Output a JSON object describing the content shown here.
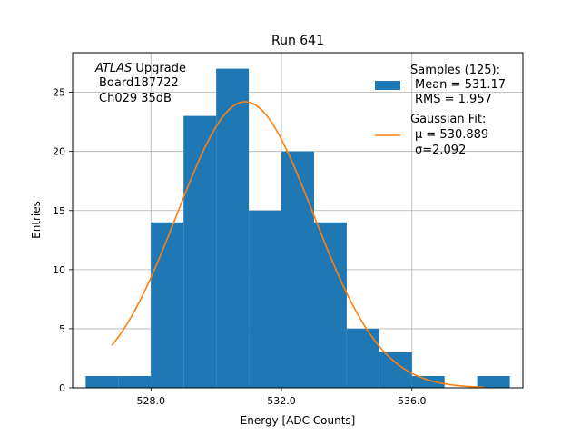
{
  "chart_data": {
    "type": "bar",
    "title": "Run 641",
    "xlabel": "Energy [ADC Counts]",
    "ylabel": "Entries",
    "xlim": [
      525.6,
      539.4
    ],
    "ylim": [
      0,
      28.35
    ],
    "grid": true,
    "xticks": [
      528,
      532,
      536
    ],
    "xtick_labels": [
      "528.0",
      "532.0",
      "536.0"
    ],
    "yticks": [
      0,
      5,
      10,
      15,
      20,
      25
    ],
    "ytick_labels": [
      "0",
      "5",
      "10",
      "15",
      "20",
      "25"
    ],
    "bin_edges": [
      526,
      527,
      528,
      529,
      530,
      531,
      532,
      533,
      534,
      535,
      536,
      537,
      538,
      539
    ],
    "counts": [
      1,
      1,
      14,
      23,
      27,
      15,
      20,
      14,
      5,
      3,
      1,
      0,
      1
    ],
    "fit": {
      "mu": 530.889,
      "sigma": 2.092,
      "amplitude": 24.2,
      "x_range": [
        526.8,
        538.2
      ]
    },
    "colors": {
      "hist": "#1f77b4",
      "fit": "#ff7f0e"
    },
    "annotation": {
      "line1_italic": "ATLAS",
      "line1_rest": " Upgrade",
      "line2": "Board187722",
      "line3": "Ch029 35dB"
    },
    "legend": {
      "position": "top-right",
      "samples_label": "Samples (125):",
      "samples_mean": "Mean = 531.17",
      "samples_rms": "RMS = 1.957",
      "fit_label": "Gaussian Fit:",
      "fit_mu": "μ = 530.889",
      "fit_sigma": "σ=2.092"
    }
  }
}
